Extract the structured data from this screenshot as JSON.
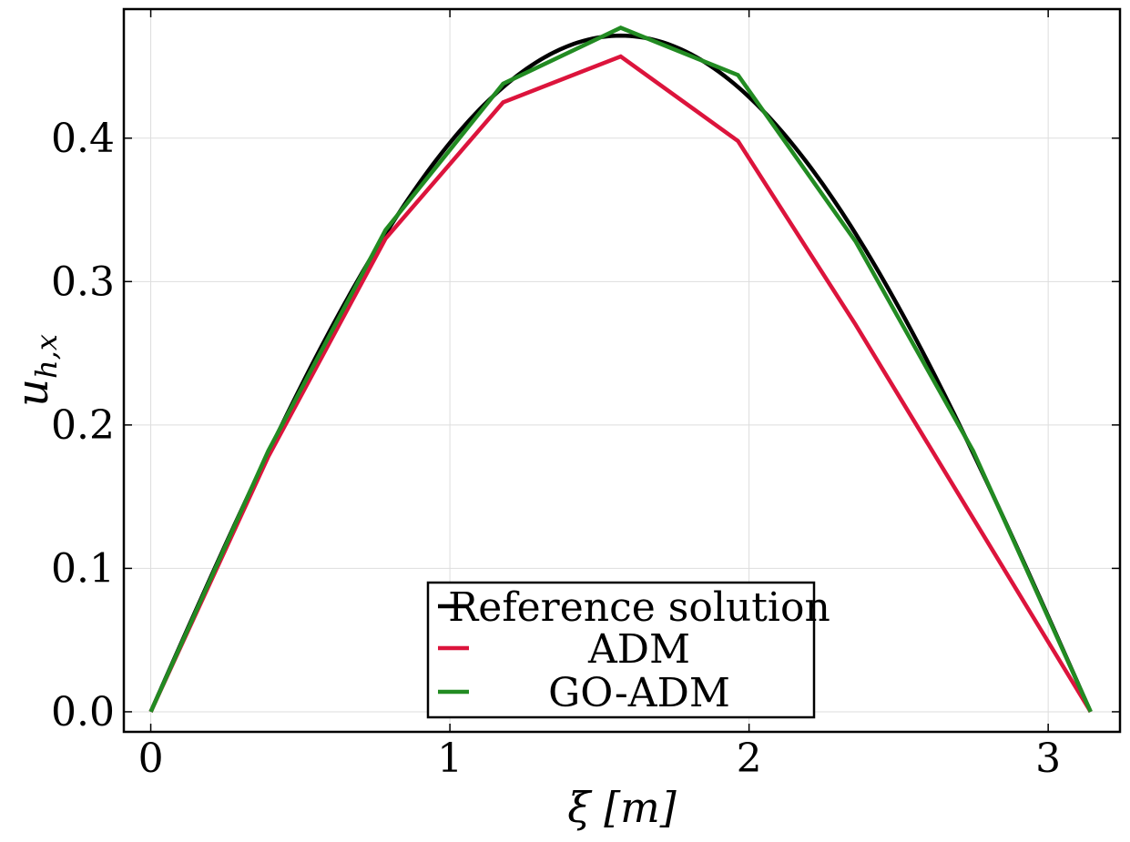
{
  "chart_data": {
    "type": "line",
    "title": "",
    "xlabel": "ξ [m]",
    "ylabel": "u_{h,x}",
    "ylabel_base": "u",
    "ylabel_sub": "h,x",
    "xlim": [
      -0.09,
      3.24
    ],
    "ylim": [
      -0.014,
      0.49
    ],
    "xticks": [
      0,
      1,
      2,
      3
    ],
    "xtick_labels": [
      "0",
      "1",
      "2",
      "3"
    ],
    "yticks": [
      0.0,
      0.1,
      0.2,
      0.3,
      0.4
    ],
    "ytick_labels": [
      "0.0",
      "0.1",
      "0.2",
      "0.3",
      "0.4"
    ],
    "grid": true,
    "legend_position": "bottom-center",
    "series": [
      {
        "name": "Reference solution",
        "color": "#000000",
        "function": "0.4715*sin(x)",
        "x_range": [
          0,
          3.1416
        ]
      },
      {
        "name": "ADM",
        "color": "#dc143c",
        "x": [
          0,
          0.393,
          0.785,
          1.178,
          1.571,
          1.963,
          2.356,
          2.749,
          3.142
        ],
        "y": [
          0.0,
          0.178,
          0.33,
          0.425,
          0.457,
          0.398,
          0.27,
          0.135,
          0.0
        ]
      },
      {
        "name": "GO-ADM",
        "color": "#228b22",
        "x": [
          0,
          0.393,
          0.785,
          1.178,
          1.571,
          1.963,
          2.356,
          2.749,
          3.142
        ],
        "y": [
          0.0,
          0.182,
          0.336,
          0.438,
          0.477,
          0.444,
          0.328,
          0.182,
          0.0
        ]
      }
    ]
  }
}
